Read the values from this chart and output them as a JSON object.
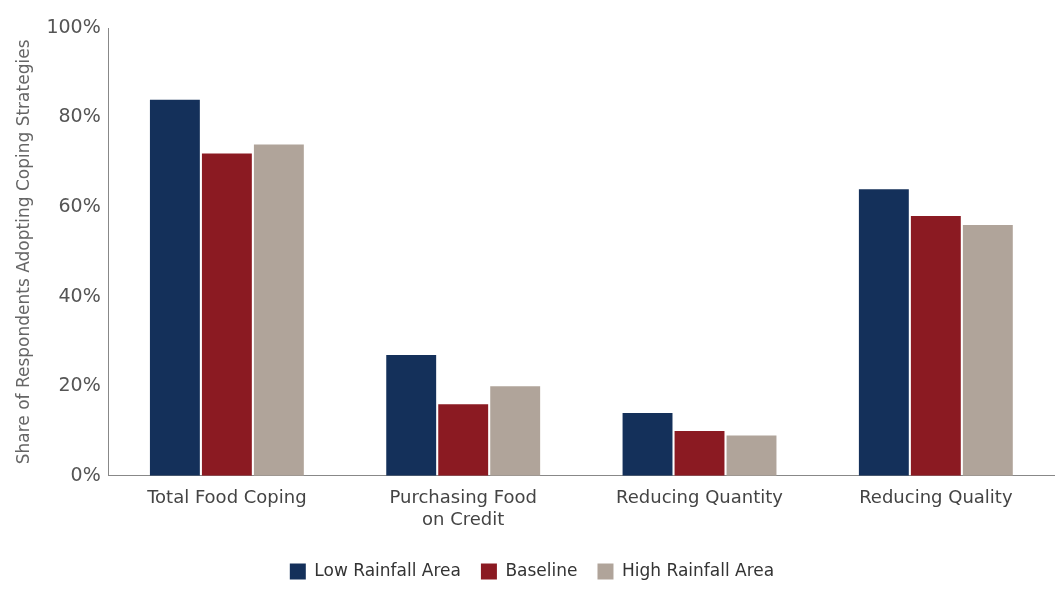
{
  "chart_data": {
    "type": "bar",
    "ylabel": "Share of Respondents Adopting Coping Strategies",
    "categories": [
      "Total Food Coping",
      "Purchasing Food on Credit",
      "Reducing Quantity",
      "Reducing Quality"
    ],
    "series": [
      {
        "name": "Low Rainfall Area",
        "color": "#14305a",
        "values": [
          84,
          27,
          14,
          64
        ]
      },
      {
        "name": "Baseline",
        "color": "#8b1a22",
        "values": [
          72,
          16,
          10,
          58
        ]
      },
      {
        "name": "High Rainfall Area",
        "color": "#b0a49a",
        "values": [
          74,
          20,
          9,
          56
        ]
      }
    ],
    "ylim": [
      0,
      100
    ],
    "yticks": [
      {
        "value": 0,
        "label": "0%"
      },
      {
        "value": 20,
        "label": "20%"
      },
      {
        "value": 40,
        "label": "40%"
      },
      {
        "value": 60,
        "label": "60%"
      },
      {
        "value": 80,
        "label": "80%"
      },
      {
        "value": 100,
        "label": "100%"
      }
    ],
    "grid": false,
    "legend": "bottom"
  }
}
